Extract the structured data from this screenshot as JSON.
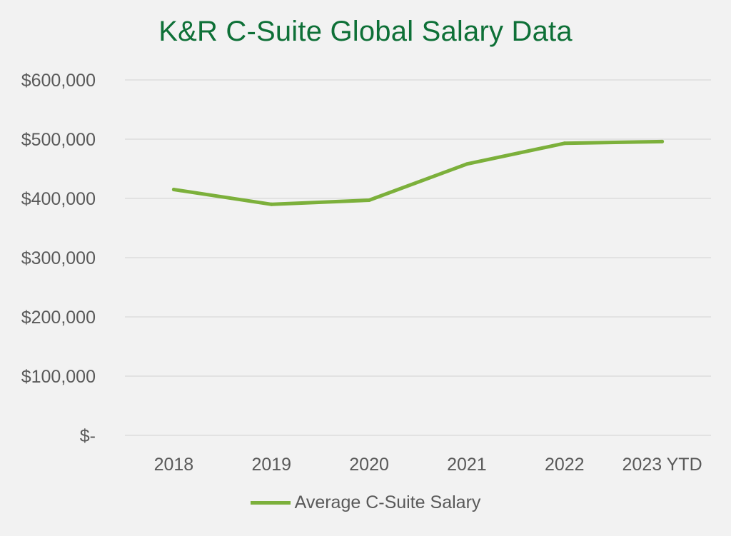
{
  "chart_data": {
    "type": "line",
    "title": "K&R C-Suite Global Salary Data",
    "categories": [
      "2018",
      "2019",
      "2020",
      "2021",
      "2022",
      "2023 YTD"
    ],
    "series": [
      {
        "name": "Average C-Suite Salary",
        "values": [
          415000,
          390000,
          397000,
          458000,
          493000,
          496000
        ],
        "color": "#7cb03b"
      }
    ],
    "xlabel": "",
    "ylabel": "",
    "ylim": [
      0,
      600000
    ],
    "yticks": [
      0,
      100000,
      200000,
      300000,
      400000,
      500000,
      600000
    ],
    "ytick_labels": [
      "$-",
      "$100,000",
      "$200,000",
      "$300,000",
      "$400,000",
      "$500,000",
      "$600,000"
    ],
    "grid": true,
    "legend_position": "bottom",
    "title_color": "#0e7037",
    "gridline_color": "#d9d9d9"
  }
}
